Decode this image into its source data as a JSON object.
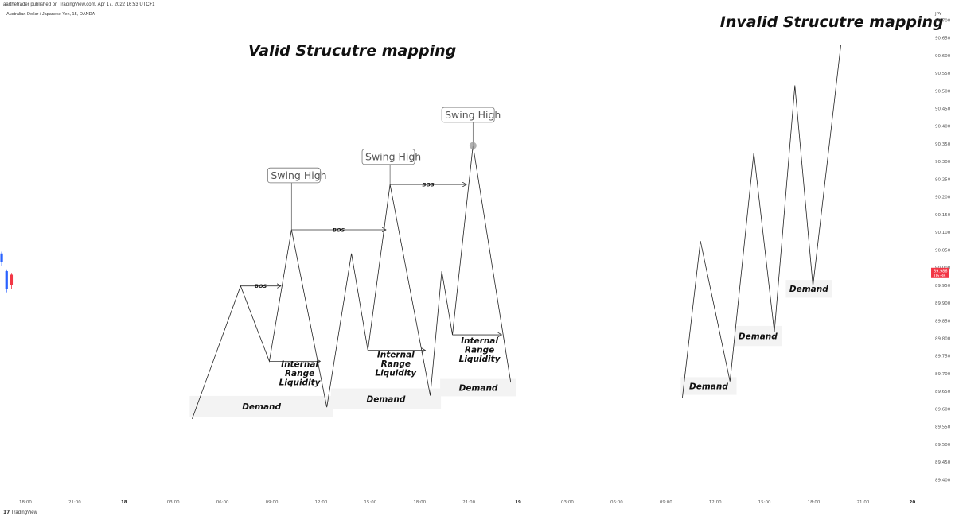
{
  "header": {
    "published": "aarthetrader published on TradingView.com, Apr 17, 2022 16:53 UTC+1",
    "symbol": "Australian Dollar / Japanese Yen, 15, OANDA"
  },
  "footer": {
    "brand": "TradingView"
  },
  "chart_data": {
    "type": "line",
    "currency_label": "JPY",
    "y_ticks": [
      "90.700",
      "90.650",
      "90.600",
      "90.550",
      "90.500",
      "90.450",
      "90.400",
      "90.350",
      "90.300",
      "90.250",
      "90.200",
      "90.150",
      "90.100",
      "90.050",
      "90.000",
      "89.950",
      "89.900",
      "89.850",
      "89.800",
      "89.750",
      "89.700",
      "89.650",
      "89.600",
      "89.550",
      "89.500",
      "89.450",
      "89.400"
    ],
    "y_tick_values": [
      90.7,
      90.65,
      90.6,
      90.55,
      90.5,
      90.45,
      90.4,
      90.35,
      90.3,
      90.25,
      90.2,
      90.15,
      90.1,
      90.05,
      90.0,
      89.95,
      89.9,
      89.85,
      89.8,
      89.75,
      89.7,
      89.65,
      89.6,
      89.55,
      89.5,
      89.45,
      89.4
    ],
    "ylim": [
      89.385,
      90.73
    ],
    "x_ticks": [
      "18:00",
      "21:00",
      "18",
      "03:00",
      "06:00",
      "09:00",
      "12:00",
      "15:00",
      "18:00",
      "21:00",
      "19",
      "03:00",
      "06:00",
      "09:00",
      "12:00",
      "15:00",
      "18:00",
      "21:00",
      "20"
    ],
    "x_tick_bold": [
      false,
      false,
      true,
      false,
      false,
      false,
      false,
      false,
      false,
      false,
      true,
      false,
      false,
      false,
      false,
      false,
      false,
      false,
      true
    ],
    "x_tick_hours": [
      -6,
      -3,
      0,
      3,
      6,
      9,
      12,
      15,
      18,
      21,
      24,
      27,
      30,
      33,
      36,
      39,
      42,
      45,
      48
    ],
    "xlim": [
      -7.55,
      49.05
    ],
    "current_price": {
      "value": 89.986,
      "label": "89.986",
      "countdown": "06:36",
      "color": "#f23645"
    },
    "candles": [
      {
        "t": -7.45,
        "open": 90.04,
        "high": 90.045,
        "low": 90.005,
        "close": 90.015,
        "color": "#2962ff"
      },
      {
        "t": -7.15,
        "open": 89.99,
        "high": 89.995,
        "low": 89.93,
        "close": 89.94,
        "color": "#2962ff"
      },
      {
        "t": -6.85,
        "open": 89.95,
        "high": 89.985,
        "low": 89.94,
        "close": 89.98,
        "color": "#f23645"
      }
    ],
    "valid_path": [
      {
        "t": 4.15,
        "p": 89.572
      },
      {
        "t": 7.1,
        "p": 89.948
      },
      {
        "t": 8.85,
        "p": 89.735
      },
      {
        "t": 10.2,
        "p": 90.107
      },
      {
        "t": 12.35,
        "p": 89.605
      },
      {
        "t": 13.85,
        "p": 90.04
      },
      {
        "t": 14.85,
        "p": 89.766
      },
      {
        "t": 16.2,
        "p": 90.235
      },
      {
        "t": 18.65,
        "p": 89.638
      },
      {
        "t": 19.35,
        "p": 89.99
      },
      {
        "t": 20.0,
        "p": 89.81
      },
      {
        "t": 21.25,
        "p": 90.345
      },
      {
        "t": 23.55,
        "p": 89.675
      }
    ],
    "invalid_path": [
      {
        "t": 34.0,
        "p": 89.632
      },
      {
        "t": 35.1,
        "p": 90.075
      },
      {
        "t": 36.9,
        "p": 89.678
      },
      {
        "t": 38.35,
        "p": 90.325
      },
      {
        "t": 39.6,
        "p": 89.818
      },
      {
        "t": 40.85,
        "p": 90.515
      },
      {
        "t": 41.95,
        "p": 89.948
      },
      {
        "t": 43.65,
        "p": 90.63
      }
    ],
    "demand_zones": [
      {
        "t0": 4.0,
        "t1": 12.75,
        "p_top": 89.637,
        "p_bottom": 89.578,
        "label": "Demand"
      },
      {
        "t0": 12.6,
        "t1": 19.3,
        "p_top": 89.658,
        "p_bottom": 89.599,
        "label": "Demand"
      },
      {
        "t0": 19.25,
        "t1": 23.9,
        "p_top": 89.685,
        "p_bottom": 89.636,
        "label": "Demand"
      },
      {
        "t0": 33.9,
        "t1": 37.3,
        "p_top": 89.69,
        "p_bottom": 89.64,
        "label": "Demand"
      },
      {
        "t0": 37.15,
        "t1": 40.05,
        "p_top": 89.835,
        "p_bottom": 89.778,
        "label": "Demand"
      },
      {
        "t0": 40.3,
        "t1": 43.1,
        "p_top": 89.965,
        "p_bottom": 89.915,
        "label": "Demand"
      }
    ],
    "bos_lines": [
      {
        "t0": 7.1,
        "t1": 9.55,
        "p": 89.948,
        "label": "BOS"
      },
      {
        "t0": 10.2,
        "t1": 15.95,
        "p": 90.107,
        "label": "BOS"
      },
      {
        "t0": 16.2,
        "t1": 20.85,
        "p": 90.235,
        "label": "BOS"
      }
    ],
    "irl_lines": [
      {
        "t0": 8.85,
        "t1": 11.95,
        "p": 89.735,
        "lines": [
          "Internal",
          "Range",
          "Liquidity"
        ],
        "label_t": 10.7,
        "label_p": 89.728
      },
      {
        "t0": 14.85,
        "t1": 18.35,
        "p": 89.766,
        "lines": [
          "Internal",
          "Range",
          "Liquidity"
        ],
        "label_t": 16.55,
        "label_p": 89.755
      },
      {
        "t0": 20.0,
        "t1": 23.0,
        "p": 89.81,
        "lines": [
          "Internal",
          "Range",
          "Liquidity"
        ],
        "label_t": 21.65,
        "label_p": 89.794
      }
    ],
    "swing_highs": [
      {
        "t": 10.2,
        "p": 90.107,
        "label": "Swing High",
        "box_t0": 8.75,
        "box_t1": 11.95,
        "box_p_top": 90.282,
        "box_p_bottom": 90.24
      },
      {
        "t": 16.2,
        "p": 90.235,
        "label": "Swing High",
        "box_t0": 14.5,
        "box_t1": 17.7,
        "box_p_top": 90.335,
        "box_p_bottom": 90.292
      },
      {
        "t": 21.25,
        "p": 90.345,
        "label": "Swing High",
        "box_t0": 19.35,
        "box_t1": 22.55,
        "box_p_top": 90.453,
        "box_p_bottom": 90.411
      }
    ],
    "annotations": [
      {
        "text": "Valid Strucutre mapping",
        "t": 13.9,
        "p": 90.6
      },
      {
        "text": "Invalid Strucutre mapping",
        "t": 43.1,
        "p": 90.68
      }
    ]
  }
}
